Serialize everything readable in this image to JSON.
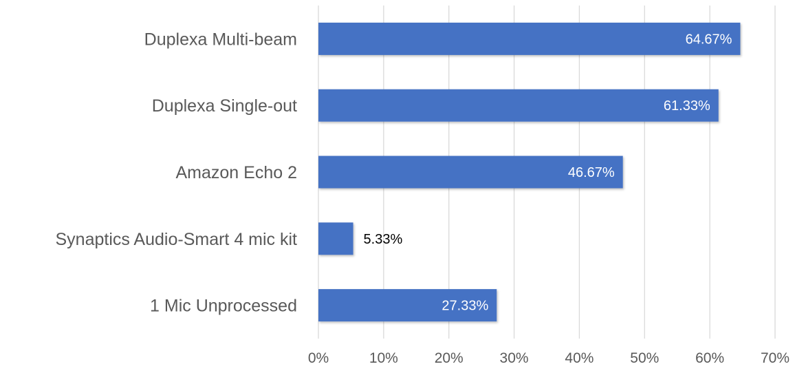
{
  "chart_data": {
    "type": "bar",
    "orientation": "horizontal",
    "title": "",
    "xlabel": "",
    "ylabel": "",
    "categories": [
      "Duplexa Multi-beam",
      "Duplexa Single-out",
      "Amazon Echo 2",
      "Synaptics Audio-Smart 4 mic kit",
      "1 Mic Unprocessed"
    ],
    "values": [
      64.67,
      61.33,
      46.67,
      5.33,
      27.33
    ],
    "data_labels": [
      "64.67%",
      "61.33%",
      "46.67%",
      "5.33%",
      "27.33%"
    ],
    "xlim": [
      0,
      70
    ],
    "x_ticks": [
      0,
      10,
      20,
      30,
      40,
      50,
      60,
      70
    ],
    "x_tick_labels": [
      "0%",
      "10%",
      "20%",
      "30%",
      "40%",
      "50%",
      "60%",
      "70%"
    ],
    "grid": "vertical",
    "legend": "none",
    "bar_color": "#4472C4",
    "label_color_inside": "#ffffff",
    "label_color_outside": "#000000"
  }
}
